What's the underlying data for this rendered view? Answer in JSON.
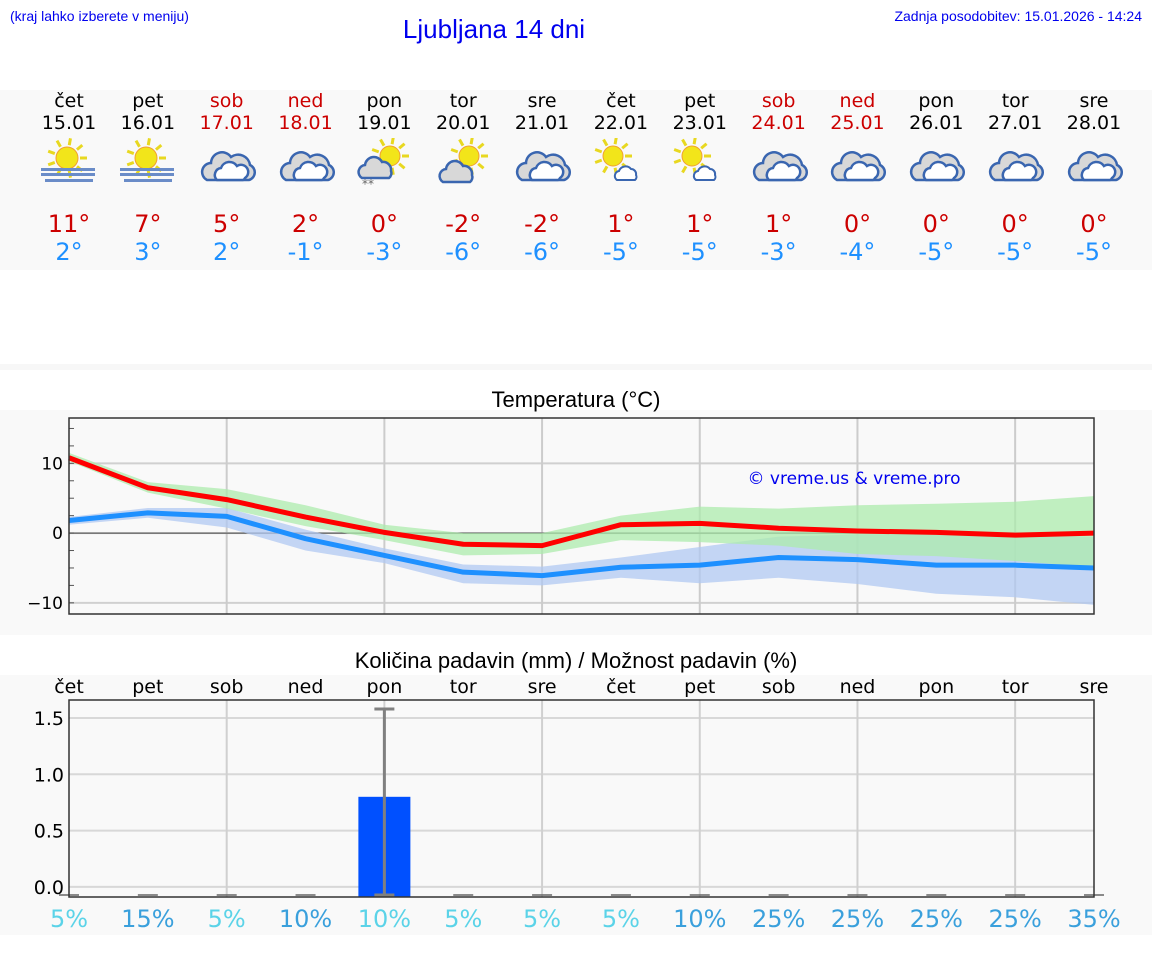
{
  "header": {
    "note": "(kraj lahko izberete v meniju)",
    "title": "Ljubljana 14 dni",
    "updated": "Zadnja posodobitev: 15.01.2026 - 14:24"
  },
  "days": [
    {
      "name": "čet",
      "date": "15.01",
      "weekend": false,
      "icon": "sun-fog-icon",
      "max": "11°",
      "min": "2°"
    },
    {
      "name": "pet",
      "date": "16.01",
      "weekend": false,
      "icon": "sun-fog-icon",
      "max": "7°",
      "min": "3°"
    },
    {
      "name": "sob",
      "date": "17.01",
      "weekend": true,
      "icon": "cloudy-icon",
      "max": "5°",
      "min": "2°"
    },
    {
      "name": "ned",
      "date": "18.01",
      "weekend": true,
      "icon": "cloudy-icon",
      "max": "2°",
      "min": "-1°"
    },
    {
      "name": "pon",
      "date": "19.01",
      "weekend": false,
      "icon": "partly-cloudy-snow-icon",
      "max": "0°",
      "min": "-3°"
    },
    {
      "name": "tor",
      "date": "20.01",
      "weekend": false,
      "icon": "partly-cloudy-icon",
      "max": "-2°",
      "min": "-6°"
    },
    {
      "name": "sre",
      "date": "21.01",
      "weekend": false,
      "icon": "cloudy-icon",
      "max": "-2°",
      "min": "-6°"
    },
    {
      "name": "čet",
      "date": "22.01",
      "weekend": false,
      "icon": "sun-small-cloud-icon",
      "max": "1°",
      "min": "-5°"
    },
    {
      "name": "pet",
      "date": "23.01",
      "weekend": false,
      "icon": "sun-small-cloud-icon",
      "max": "1°",
      "min": "-5°"
    },
    {
      "name": "sob",
      "date": "24.01",
      "weekend": true,
      "icon": "cloudy-icon",
      "max": "1°",
      "min": "-3°"
    },
    {
      "name": "ned",
      "date": "25.01",
      "weekend": true,
      "icon": "cloudy-icon",
      "max": "0°",
      "min": "-4°"
    },
    {
      "name": "pon",
      "date": "26.01",
      "weekend": false,
      "icon": "cloudy-icon",
      "max": "0°",
      "min": "-5°"
    },
    {
      "name": "tor",
      "date": "27.01",
      "weekend": false,
      "icon": "cloudy-icon",
      "max": "0°",
      "min": "-5°"
    },
    {
      "name": "sre",
      "date": "28.01",
      "weekend": false,
      "icon": "cloudy-icon",
      "max": "0°",
      "min": "-5°"
    }
  ],
  "colors": {
    "accent": "#0000ee",
    "weekend": "#cc0000",
    "max": "#ff0000",
    "min": "#1e90ff",
    "max_band": "#acebac",
    "min_band": "#b0c8f2",
    "overlap": "#7ec8a8",
    "bar": "#0050ff",
    "errbar": "#808080"
  },
  "chart_data": [
    {
      "type": "line",
      "title": "Temperatura (°C)",
      "watermark": "© vreme.us & vreme.pro",
      "x": [
        "15.01",
        "16.01",
        "17.01",
        "18.01",
        "19.01",
        "20.01",
        "21.01",
        "22.01",
        "23.01",
        "24.01",
        "25.01",
        "26.01",
        "27.01",
        "28.01"
      ],
      "ylim": [
        -11.6,
        16.5
      ],
      "yticks": [
        10,
        0,
        -10
      ],
      "ytick_labels": [
        "10",
        "0",
        "−10"
      ],
      "grid": true,
      "series": [
        {
          "key": "max",
          "values": [
            10.8,
            6.5,
            4.8,
            2.3,
            0.1,
            -1.6,
            -1.8,
            1.2,
            1.4,
            0.7,
            0.3,
            0.1,
            -0.3,
            0.0
          ],
          "band_upper": [
            11.5,
            7.3,
            6.3,
            4.0,
            1.2,
            0.0,
            0.0,
            2.5,
            3.8,
            3.5,
            4.0,
            4.2,
            4.5,
            5.3
          ],
          "band_lower": [
            10.3,
            5.8,
            3.5,
            1.0,
            -1.0,
            -3.2,
            -3.0,
            -1.0,
            -1.3,
            -1.8,
            -3.0,
            -3.3,
            -4.0,
            -4.9
          ]
        },
        {
          "key": "min",
          "values": [
            1.8,
            2.9,
            2.4,
            -0.8,
            -3.2,
            -5.6,
            -6.1,
            -4.9,
            -4.6,
            -3.5,
            -3.8,
            -4.6,
            -4.6,
            -5.0
          ],
          "band_upper": [
            2.3,
            3.6,
            3.6,
            0.5,
            -2.2,
            -4.5,
            -4.8,
            -3.5,
            -2.0,
            -0.5,
            -0.2,
            -0.1,
            0.0,
            -0.6
          ],
          "band_lower": [
            1.2,
            2.2,
            0.8,
            -2.5,
            -4.3,
            -7.2,
            -7.5,
            -6.4,
            -7.2,
            -6.4,
            -7.3,
            -8.7,
            -9.2,
            -10.3
          ]
        }
      ]
    },
    {
      "type": "bar",
      "title": "Količina padavin (mm) / Možnost padavin (%)",
      "categories": [
        "čet",
        "pet",
        "sob",
        "ned",
        "pon",
        "tor",
        "sre",
        "čet",
        "pet",
        "sob",
        "ned",
        "pon",
        "tor",
        "sre"
      ],
      "values": [
        0,
        0,
        0,
        0,
        0.8,
        0,
        0,
        0,
        0,
        0,
        0,
        0,
        0,
        0
      ],
      "err_upper": [
        0,
        0,
        0,
        0,
        1.58,
        0,
        0,
        0,
        0,
        0,
        0,
        0,
        0,
        0
      ],
      "err_lower": [
        0,
        0,
        0,
        0,
        0,
        0,
        0,
        0,
        0,
        0,
        0,
        0,
        0,
        0
      ],
      "ylim": [
        -0.09,
        1.66
      ],
      "yticks": [
        "0.0",
        "0.5",
        "1.0",
        "1.5"
      ],
      "grid": true,
      "probability": [
        {
          "label": "5%",
          "color": "#5bd3e8"
        },
        {
          "label": "15%",
          "color": "#3aa0dc"
        },
        {
          "label": "5%",
          "color": "#5bd3e8"
        },
        {
          "label": "10%",
          "color": "#3aa0dc"
        },
        {
          "label": "10%",
          "color": "#5bd3e8"
        },
        {
          "label": "5%",
          "color": "#5bd3e8"
        },
        {
          "label": "5%",
          "color": "#5bd3e8"
        },
        {
          "label": "5%",
          "color": "#5bd3e8"
        },
        {
          "label": "10%",
          "color": "#3aa0dc"
        },
        {
          "label": "25%",
          "color": "#3aa0dc"
        },
        {
          "label": "25%",
          "color": "#3aa0dc"
        },
        {
          "label": "25%",
          "color": "#3aa0dc"
        },
        {
          "label": "25%",
          "color": "#3aa0dc"
        },
        {
          "label": "35%",
          "color": "#3aa0dc"
        }
      ]
    }
  ]
}
